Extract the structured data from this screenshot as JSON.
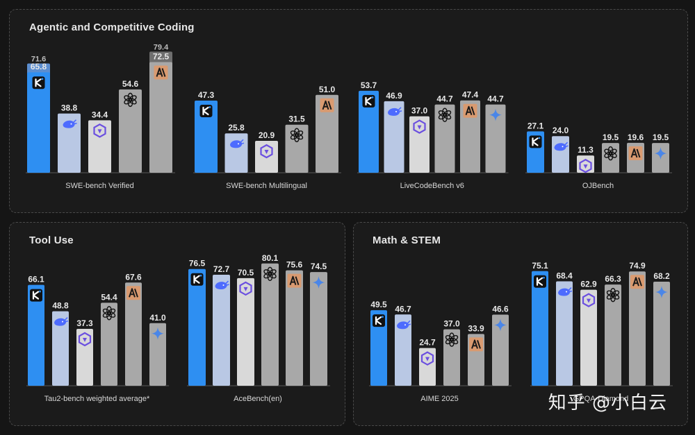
{
  "colors": {
    "kimi": "#2e8ff2",
    "deepseek": "#b9c8e4",
    "qwen": "#d9d9d9",
    "openai": "#a8a8a8",
    "anthropic": "#a8a8a8",
    "gemini": "#a8a8a8",
    "ghost_kimi": "#5c8ed0",
    "ghost_anthropic": "#6e6e6e"
  },
  "model_icons": {
    "kimi": "kimi-logo-icon",
    "deepseek": "deepseek-whale-icon",
    "qwen": "qwen-logo-icon",
    "openai": "openai-logo-icon",
    "anthropic": "anthropic-logo-icon",
    "gemini": "gemini-sparkle-icon"
  },
  "watermark": "知乎 @小白云",
  "chart_data": [
    {
      "type": "bar",
      "panel_title": "Agentic and Competitive Coding",
      "benchmarks": [
        {
          "name": "SWE-bench Verified",
          "bars": [
            {
              "model": "kimi",
              "value": 65.8,
              "ghost_value": 71.6
            },
            {
              "model": "deepseek",
              "value": 38.8
            },
            {
              "model": "qwen",
              "value": 34.4
            },
            {
              "model": "openai",
              "value": 54.6
            },
            {
              "model": "anthropic",
              "value": 72.5,
              "ghost_value": 79.4
            }
          ]
        },
        {
          "name": "SWE-bench Multilingual",
          "bars": [
            {
              "model": "kimi",
              "value": 47.3
            },
            {
              "model": "deepseek",
              "value": 25.8
            },
            {
              "model": "qwen",
              "value": 20.9
            },
            {
              "model": "openai",
              "value": 31.5
            },
            {
              "model": "anthropic",
              "value": 51.0
            }
          ]
        },
        {
          "name": "LiveCodeBench v6",
          "bars": [
            {
              "model": "kimi",
              "value": 53.7
            },
            {
              "model": "deepseek",
              "value": 46.9
            },
            {
              "model": "qwen",
              "value": 37.0
            },
            {
              "model": "openai",
              "value": 44.7
            },
            {
              "model": "anthropic",
              "value": 47.4
            },
            {
              "model": "gemini",
              "value": 44.7
            }
          ]
        },
        {
          "name": "OJBench",
          "bars": [
            {
              "model": "kimi",
              "value": 27.1
            },
            {
              "model": "deepseek",
              "value": 24.0
            },
            {
              "model": "qwen",
              "value": 11.3
            },
            {
              "model": "openai",
              "value": 19.5
            },
            {
              "model": "anthropic",
              "value": 19.6
            },
            {
              "model": "gemini",
              "value": 19.5
            }
          ]
        }
      ]
    },
    {
      "type": "bar",
      "panel_title": "Tool Use",
      "benchmarks": [
        {
          "name": "Tau2-bench weighted average*",
          "bars": [
            {
              "model": "kimi",
              "value": 66.1
            },
            {
              "model": "deepseek",
              "value": 48.8
            },
            {
              "model": "qwen",
              "value": 37.3
            },
            {
              "model": "openai",
              "value": 54.4
            },
            {
              "model": "anthropic",
              "value": 67.6
            },
            {
              "model": "gemini",
              "value": 41.0
            }
          ]
        },
        {
          "name": "AceBench(en)",
          "bars": [
            {
              "model": "kimi",
              "value": 76.5
            },
            {
              "model": "deepseek",
              "value": 72.7
            },
            {
              "model": "qwen",
              "value": 70.5
            },
            {
              "model": "openai",
              "value": 80.1
            },
            {
              "model": "anthropic",
              "value": 75.6
            },
            {
              "model": "gemini",
              "value": 74.5
            }
          ]
        }
      ]
    },
    {
      "type": "bar",
      "panel_title": "Math & STEM",
      "benchmarks": [
        {
          "name": "AIME 2025",
          "bars": [
            {
              "model": "kimi",
              "value": 49.5
            },
            {
              "model": "deepseek",
              "value": 46.7
            },
            {
              "model": "qwen",
              "value": 24.7
            },
            {
              "model": "openai",
              "value": 37.0
            },
            {
              "model": "anthropic",
              "value": 33.9
            },
            {
              "model": "gemini",
              "value": 46.6
            }
          ]
        },
        {
          "name": "GPQA-Diamond",
          "bars": [
            {
              "model": "kimi",
              "value": 75.1
            },
            {
              "model": "deepseek",
              "value": 68.4
            },
            {
              "model": "qwen",
              "value": 62.9
            },
            {
              "model": "openai",
              "value": 66.3
            },
            {
              "model": "anthropic",
              "value": 74.9
            },
            {
              "model": "gemini",
              "value": 68.2
            }
          ]
        }
      ]
    }
  ]
}
